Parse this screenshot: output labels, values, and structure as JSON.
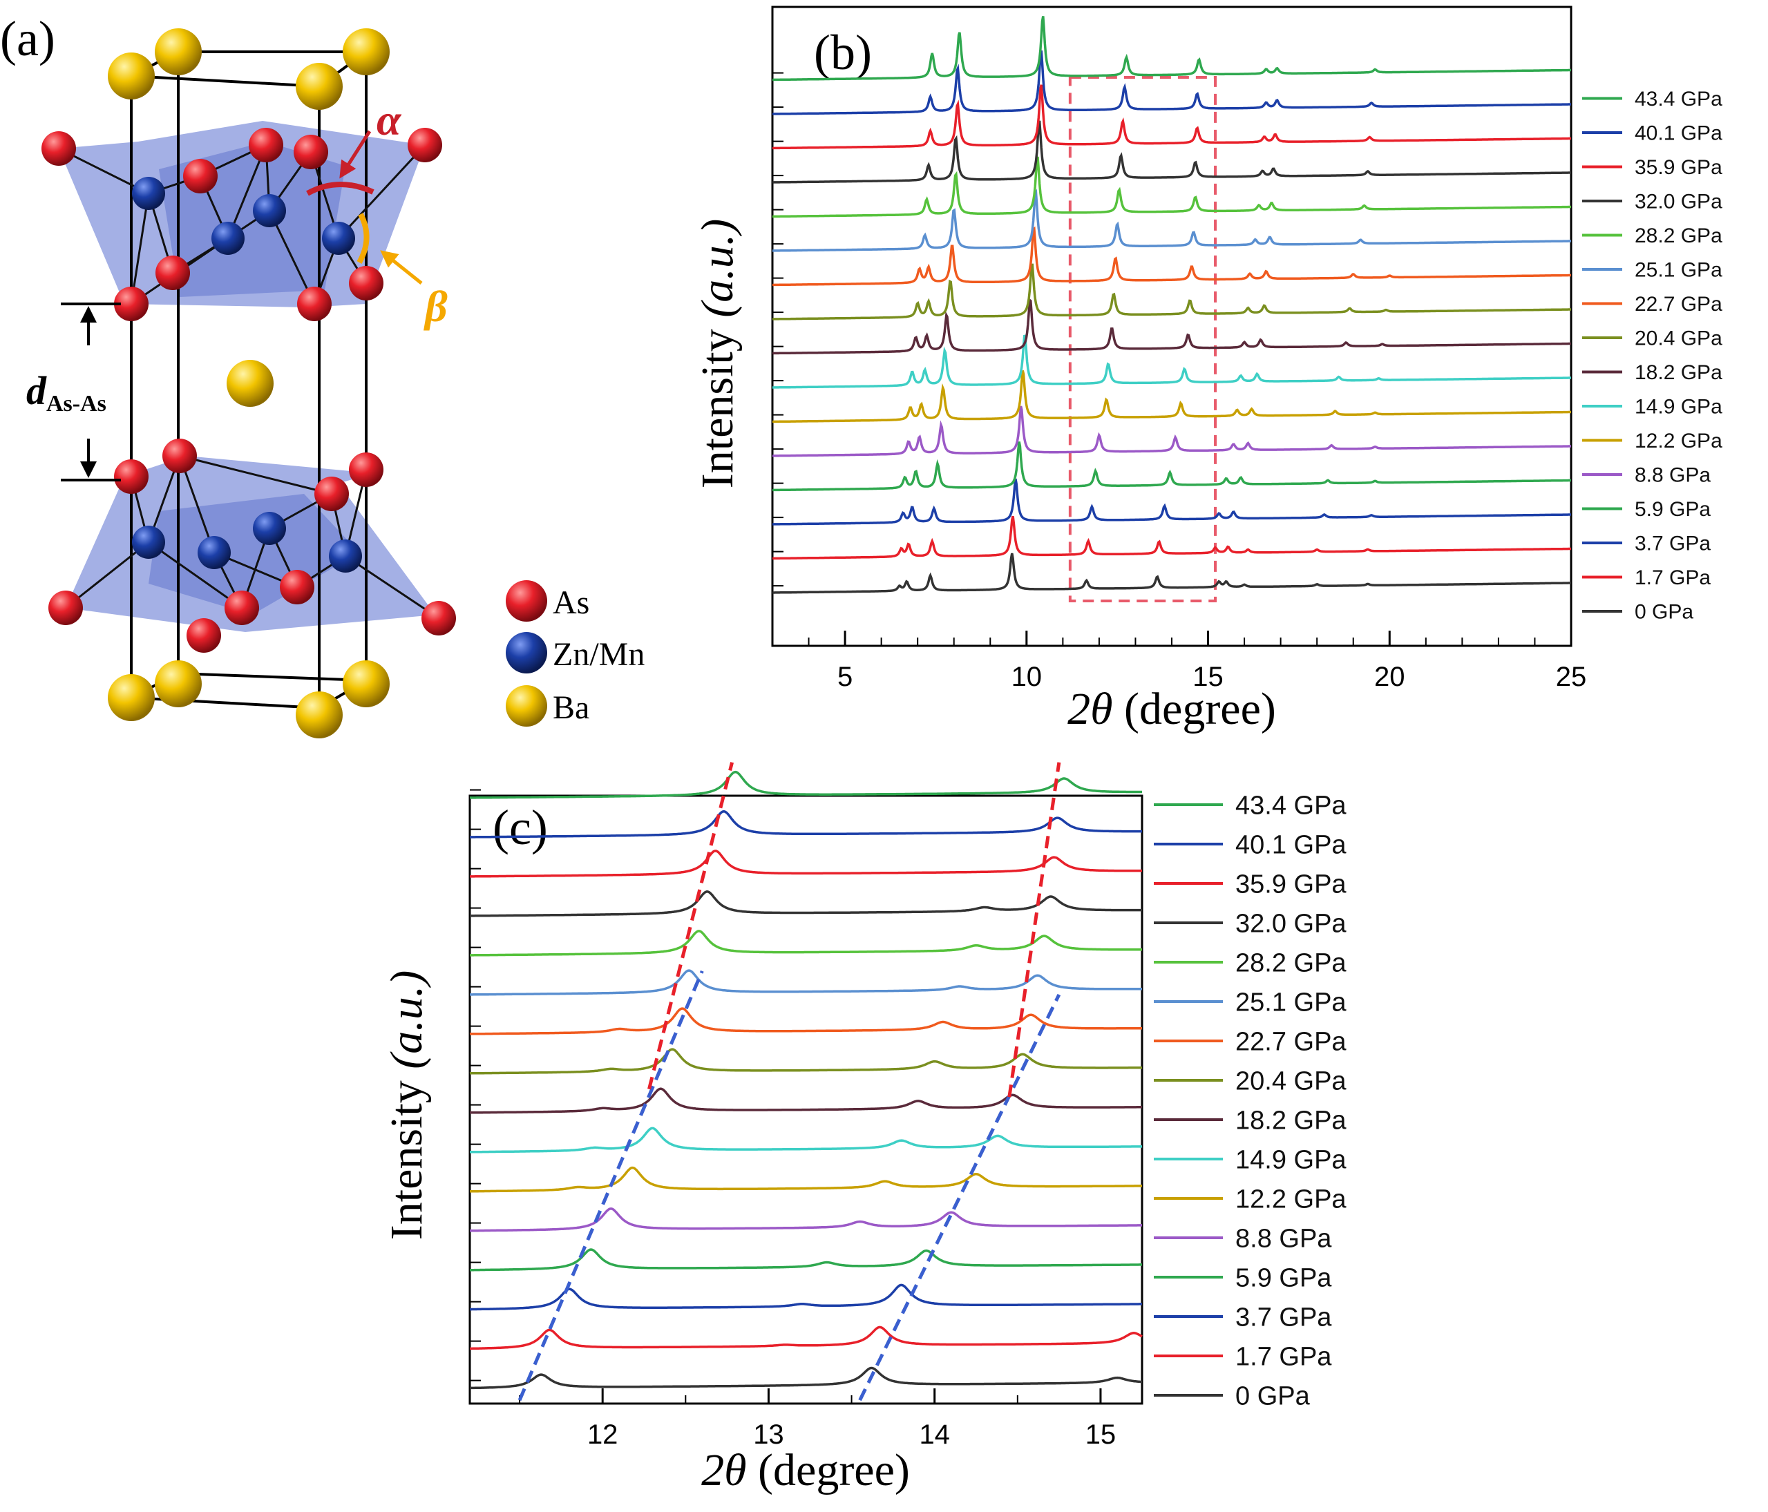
{
  "panel_a": {
    "label": "(a)",
    "alpha": "α",
    "beta": "β",
    "d_main": "d",
    "d_sub": "As-As",
    "legend": [
      {
        "name": "As",
        "color": "#e8202a"
      },
      {
        "name": "Zn/Mn",
        "color": "#1c3fa8"
      },
      {
        "name": "Ba",
        "color": "#f2c400"
      }
    ]
  },
  "chart_data": [
    {
      "type": "line",
      "panel": "(b)",
      "xlabel_theta": "2θ",
      "xlabel_unit": "(degree)",
      "ylabel": "Intensity",
      "ylabel_unit": "(a.u.)",
      "xlim": [
        3,
        25
      ],
      "xticks": [
        "5",
        "10",
        "15",
        "20",
        "25"
      ],
      "highlight_box": {
        "x": [
          11.2,
          15.2
        ],
        "color": "#e85a6a",
        "style": "dashed"
      },
      "series": [
        {
          "name": "0 GPa",
          "color": "#333333",
          "peaks": [
            [
              6.5,
              0.3
            ],
            [
              6.7,
              0.6
            ],
            [
              7.35,
              1.0
            ],
            [
              9.6,
              2.4
            ],
            [
              11.65,
              0.55
            ],
            [
              13.6,
              0.75
            ],
            [
              15.3,
              0.35
            ],
            [
              15.5,
              0.35
            ],
            [
              16.0,
              0.15
            ],
            [
              18.0,
              0.12
            ],
            [
              19.4,
              0.1
            ]
          ]
        },
        {
          "name": "1.7 GPa",
          "color": "#e8202a",
          "peaks": [
            [
              6.55,
              0.5
            ],
            [
              6.75,
              0.8
            ],
            [
              7.4,
              1.0
            ],
            [
              9.62,
              2.6
            ],
            [
              11.7,
              0.9
            ],
            [
              13.65,
              0.8
            ],
            [
              15.2,
              0.35
            ],
            [
              15.55,
              0.4
            ],
            [
              16.1,
              0.2
            ],
            [
              18.0,
              0.15
            ],
            [
              19.4,
              0.12
            ]
          ]
        },
        {
          "name": "3.7 GPa",
          "color": "#1c3fa8",
          "peaks": [
            [
              6.6,
              0.6
            ],
            [
              6.85,
              1.0
            ],
            [
              7.45,
              0.9
            ],
            [
              9.7,
              2.8
            ],
            [
              11.8,
              0.9
            ],
            [
              13.8,
              0.9
            ],
            [
              15.3,
              0.35
            ],
            [
              15.7,
              0.45
            ],
            [
              18.2,
              0.2
            ],
            [
              19.5,
              0.12
            ]
          ]
        },
        {
          "name": "5.9 GPa",
          "color": "#2fa84f",
          "peaks": [
            [
              6.65,
              0.7
            ],
            [
              6.95,
              1.1
            ],
            [
              7.55,
              1.6
            ],
            [
              9.8,
              3.0
            ],
            [
              11.9,
              1.0
            ],
            [
              13.95,
              0.85
            ],
            [
              15.5,
              0.4
            ],
            [
              15.9,
              0.45
            ],
            [
              18.3,
              0.2
            ],
            [
              19.6,
              0.12
            ]
          ]
        },
        {
          "name": "8.8 GPa",
          "color": "#9b59c7",
          "peaks": [
            [
              6.75,
              0.8
            ],
            [
              7.05,
              1.1
            ],
            [
              7.65,
              1.9
            ],
            [
              9.85,
              3.1
            ],
            [
              12.0,
              1.1
            ],
            [
              14.1,
              0.9
            ],
            [
              15.7,
              0.4
            ],
            [
              16.1,
              0.45
            ],
            [
              18.4,
              0.25
            ],
            [
              19.6,
              0.12
            ]
          ]
        },
        {
          "name": "12.2 GPa",
          "color": "#c8a000",
          "peaks": [
            [
              6.8,
              0.8
            ],
            [
              7.1,
              1.0
            ],
            [
              7.7,
              2.1
            ],
            [
              9.9,
              3.2
            ],
            [
              12.2,
              1.2
            ],
            [
              14.25,
              0.9
            ],
            [
              15.8,
              0.4
            ],
            [
              16.2,
              0.45
            ],
            [
              18.5,
              0.25
            ],
            [
              19.6,
              0.12
            ]
          ]
        },
        {
          "name": "14.9 GPa",
          "color": "#3ecfc5",
          "peaks": [
            [
              6.85,
              0.9
            ],
            [
              7.2,
              1.0
            ],
            [
              7.75,
              2.3
            ],
            [
              9.95,
              3.3
            ],
            [
              12.25,
              1.3
            ],
            [
              14.35,
              0.9
            ],
            [
              15.9,
              0.4
            ],
            [
              16.35,
              0.5
            ],
            [
              18.6,
              0.25
            ],
            [
              19.7,
              0.12
            ]
          ]
        },
        {
          "name": "18.2 GPa",
          "color": "#5a2a3a",
          "peaks": [
            [
              6.95,
              0.9
            ],
            [
              7.25,
              1.0
            ],
            [
              7.8,
              2.4
            ],
            [
              10.1,
              3.4
            ],
            [
              12.35,
              1.4
            ],
            [
              14.45,
              0.9
            ],
            [
              16.0,
              0.35
            ],
            [
              16.45,
              0.5
            ],
            [
              18.8,
              0.25
            ],
            [
              19.8,
              0.12
            ]
          ]
        },
        {
          "name": "20.4 GPa",
          "color": "#7a8f1f",
          "peaks": [
            [
              7.0,
              0.9
            ],
            [
              7.3,
              1.0
            ],
            [
              7.9,
              2.4
            ],
            [
              10.15,
              3.5
            ],
            [
              12.4,
              1.4
            ],
            [
              14.5,
              0.9
            ],
            [
              16.1,
              0.35
            ],
            [
              16.55,
              0.5
            ],
            [
              18.9,
              0.25
            ],
            [
              19.9,
              0.12
            ]
          ]
        },
        {
          "name": "22.7 GPa",
          "color": "#f05a1e",
          "peaks": [
            [
              7.05,
              0.9
            ],
            [
              7.3,
              1.0
            ],
            [
              7.95,
              2.5
            ],
            [
              10.2,
              3.6
            ],
            [
              12.45,
              1.5
            ],
            [
              14.55,
              0.9
            ],
            [
              16.15,
              0.35
            ],
            [
              16.6,
              0.5
            ],
            [
              19.0,
              0.25
            ],
            [
              20.0,
              0.12
            ]
          ]
        },
        {
          "name": "25.1 GPa",
          "color": "#5a8fd0",
          "peaks": [
            [
              7.2,
              0.9
            ],
            [
              8.0,
              2.6
            ],
            [
              10.25,
              3.7
            ],
            [
              12.5,
              1.5
            ],
            [
              14.6,
              0.9
            ],
            [
              16.3,
              0.35
            ],
            [
              16.7,
              0.5
            ],
            [
              19.2,
              0.25
            ]
          ]
        },
        {
          "name": "28.2 GPa",
          "color": "#56c23c",
          "peaks": [
            [
              7.25,
              1.0
            ],
            [
              8.05,
              2.7
            ],
            [
              10.3,
              3.8
            ],
            [
              12.55,
              1.5
            ],
            [
              14.65,
              0.95
            ],
            [
              16.4,
              0.35
            ],
            [
              16.75,
              0.5
            ],
            [
              19.3,
              0.25
            ]
          ]
        },
        {
          "name": "32.0 GPa",
          "color": "#333333",
          "peaks": [
            [
              7.3,
              1.0
            ],
            [
              8.05,
              2.8
            ],
            [
              10.35,
              3.9
            ],
            [
              12.6,
              1.5
            ],
            [
              14.65,
              1.0
            ],
            [
              16.5,
              0.35
            ],
            [
              16.8,
              0.5
            ],
            [
              19.4,
              0.25
            ]
          ]
        },
        {
          "name": "35.9 GPa",
          "color": "#e8202a",
          "peaks": [
            [
              7.35,
              1.0
            ],
            [
              8.1,
              2.8
            ],
            [
              10.4,
              4.0
            ],
            [
              12.65,
              1.5
            ],
            [
              14.7,
              1.0
            ],
            [
              16.55,
              0.35
            ],
            [
              16.85,
              0.5
            ],
            [
              19.45,
              0.25
            ]
          ]
        },
        {
          "name": "40.1 GPa",
          "color": "#1c3fa8",
          "peaks": [
            [
              7.35,
              1.0
            ],
            [
              8.1,
              2.9
            ],
            [
              10.4,
              4.0
            ],
            [
              12.7,
              1.5
            ],
            [
              14.7,
              1.0
            ],
            [
              16.6,
              0.35
            ],
            [
              16.9,
              0.5
            ],
            [
              19.5,
              0.25
            ]
          ]
        },
        {
          "name": "43.4 GPa",
          "color": "#2fa84f",
          "peaks": [
            [
              7.4,
              1.6
            ],
            [
              8.15,
              3.0
            ],
            [
              10.45,
              4.0
            ],
            [
              12.75,
              1.2
            ],
            [
              14.75,
              1.0
            ],
            [
              16.6,
              0.3
            ],
            [
              16.9,
              0.35
            ],
            [
              19.6,
              0.2
            ]
          ]
        }
      ]
    },
    {
      "type": "line",
      "panel": "(c)",
      "xlabel_theta": "2θ",
      "xlabel_unit": "(degree)",
      "ylabel": "Intensity",
      "ylabel_unit": "(a.u.)",
      "xlim": [
        11.2,
        15.25
      ],
      "xticks": [
        "12",
        "13",
        "14",
        "15"
      ],
      "guide_lines": [
        {
          "color": "#3a5fcf",
          "style": "dashed",
          "from": [
            11.5,
            -0.3
          ],
          "to": [
            12.6,
            10.6
          ]
        },
        {
          "color": "#3a5fcf",
          "style": "dashed",
          "from": [
            13.55,
            -0.3
          ],
          "to": [
            14.75,
            10.0
          ]
        },
        {
          "color": "#e8202a",
          "style": "dashed",
          "from": [
            12.28,
            7.6
          ],
          "to": [
            12.78,
            15.9
          ]
        },
        {
          "color": "#e8202a",
          "style": "dashed",
          "from": [
            14.45,
            7.4
          ],
          "to": [
            14.75,
            15.9
          ]
        }
      ],
      "series": [
        {
          "name": "0 GPa",
          "color": "#333333",
          "peaks": [
            [
              11.63,
              0.5
            ],
            [
              13.62,
              0.65
            ],
            [
              15.1,
              0.2
            ]
          ]
        },
        {
          "name": "1.7 GPa",
          "color": "#e8202a",
          "peaks": [
            [
              11.68,
              0.7
            ],
            [
              13.67,
              0.7
            ],
            [
              13.1,
              0.05
            ],
            [
              15.2,
              0.4
            ]
          ]
        },
        {
          "name": "3.7 GPa",
          "color": "#1c3fa8",
          "peaks": [
            [
              11.8,
              0.75
            ],
            [
              13.8,
              0.8
            ],
            [
              13.2,
              0.1
            ]
          ]
        },
        {
          "name": "5.9 GPa",
          "color": "#2fa84f",
          "peaks": [
            [
              11.93,
              0.75
            ],
            [
              13.95,
              0.6
            ],
            [
              13.35,
              0.18
            ]
          ]
        },
        {
          "name": "8.8 GPa",
          "color": "#9b59c7",
          "peaks": [
            [
              12.05,
              0.8
            ],
            [
              14.1,
              0.55
            ],
            [
              13.55,
              0.22
            ]
          ]
        },
        {
          "name": "12.2 GPa",
          "color": "#c8a000",
          "peaks": [
            [
              12.18,
              0.85
            ],
            [
              14.25,
              0.5
            ],
            [
              13.7,
              0.25
            ],
            [
              11.85,
              0.1
            ]
          ]
        },
        {
          "name": "14.9 GPa",
          "color": "#3ecfc5",
          "peaks": [
            [
              12.3,
              0.85
            ],
            [
              14.38,
              0.45
            ],
            [
              13.8,
              0.3
            ],
            [
              11.95,
              0.1
            ]
          ]
        },
        {
          "name": "18.2 GPa",
          "color": "#5a2a3a",
          "peaks": [
            [
              12.35,
              0.85
            ],
            [
              14.47,
              0.5
            ],
            [
              13.9,
              0.3
            ],
            [
              12.0,
              0.1
            ]
          ]
        },
        {
          "name": "20.4 GPa",
          "color": "#7a8f1f",
          "peaks": [
            [
              12.42,
              0.85
            ],
            [
              14.53,
              0.55
            ],
            [
              14.0,
              0.3
            ],
            [
              12.05,
              0.1
            ]
          ]
        },
        {
          "name": "22.7 GPa",
          "color": "#f05a1e",
          "peaks": [
            [
              12.48,
              0.9
            ],
            [
              14.58,
              0.55
            ],
            [
              14.05,
              0.3
            ],
            [
              12.1,
              0.12
            ]
          ]
        },
        {
          "name": "25.1 GPa",
          "color": "#5a8fd0",
          "peaks": [
            [
              12.52,
              0.85
            ],
            [
              14.62,
              0.55
            ],
            [
              14.15,
              0.15
            ]
          ]
        },
        {
          "name": "28.2 GPa",
          "color": "#56c23c",
          "peaks": [
            [
              12.58,
              0.85
            ],
            [
              14.66,
              0.55
            ],
            [
              14.25,
              0.2
            ]
          ]
        },
        {
          "name": "32.0 GPa",
          "color": "#333333",
          "peaks": [
            [
              12.63,
              0.85
            ],
            [
              14.7,
              0.55
            ],
            [
              14.3,
              0.15
            ]
          ]
        },
        {
          "name": "35.9 GPa",
          "color": "#e8202a",
          "peaks": [
            [
              12.68,
              0.9
            ],
            [
              14.72,
              0.55
            ]
          ]
        },
        {
          "name": "40.1 GPa",
          "color": "#1c3fa8",
          "peaks": [
            [
              12.73,
              0.9
            ],
            [
              14.74,
              0.55
            ]
          ]
        },
        {
          "name": "43.4 GPa",
          "color": "#2fa84f",
          "peaks": [
            [
              12.8,
              0.9
            ],
            [
              14.78,
              0.55
            ]
          ]
        }
      ]
    }
  ]
}
